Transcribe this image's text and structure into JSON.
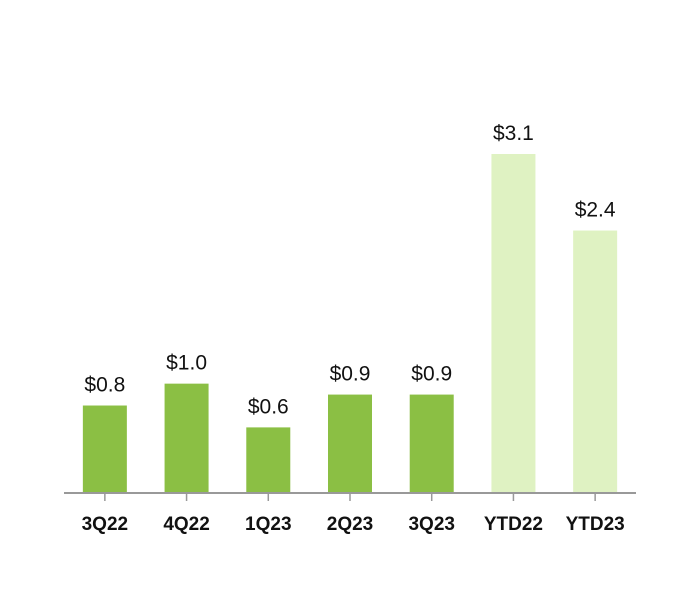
{
  "chart_data": {
    "type": "bar",
    "categories": [
      "3Q22",
      "4Q22",
      "1Q23",
      "2Q23",
      "3Q23",
      "YTD22",
      "YTD23"
    ],
    "values": [
      0.8,
      1.0,
      0.6,
      0.9,
      0.9,
      3.1,
      2.4
    ],
    "value_labels": [
      "$0.8",
      "$1.0",
      "$0.6",
      "$0.9",
      "$0.9",
      "$3.1",
      "$2.4"
    ],
    "bar_colors": [
      "#8bbf44",
      "#8bbf44",
      "#8bbf44",
      "#8bbf44",
      "#8bbf44",
      "#dff2c2",
      "#dff2c2"
    ],
    "title": "",
    "xlabel": "",
    "ylabel": "",
    "ylim": [
      0,
      3.1
    ],
    "grid": false,
    "axis_color": "#999999"
  }
}
